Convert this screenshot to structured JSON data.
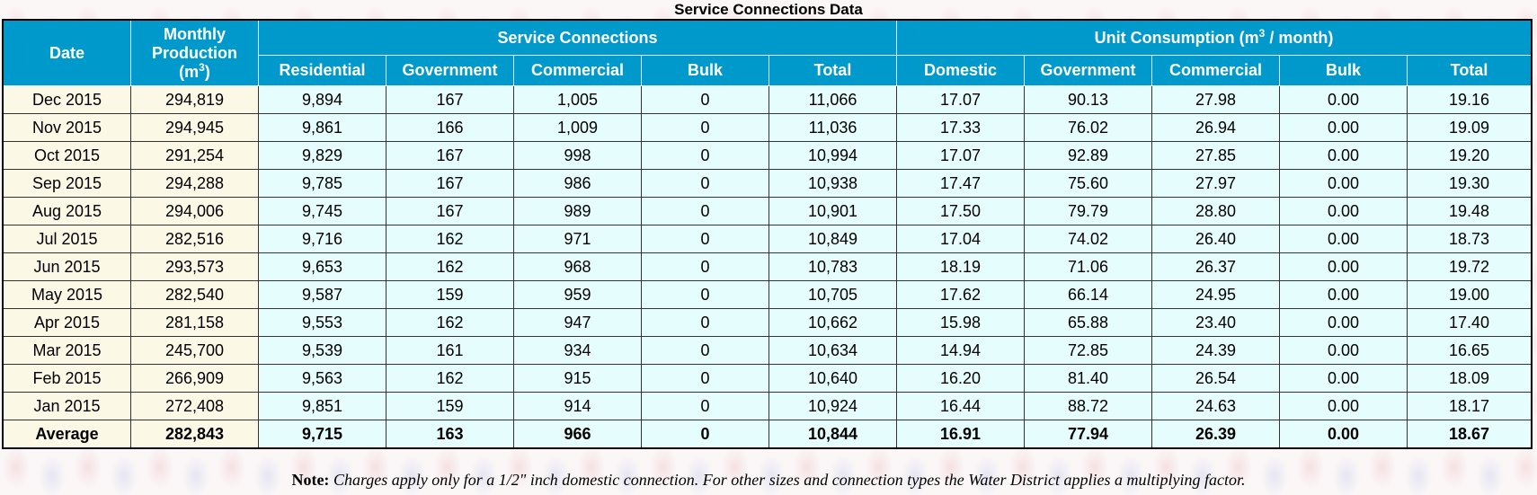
{
  "caption": "Service Connections Data",
  "headers": {
    "date": "Date",
    "production_line1": "Monthly",
    "production_line2": "Production",
    "production_unit": "(m",
    "production_sup": "3",
    "production_unit_close": ")",
    "service_group": "Service Connections",
    "consumption_group": "Unit Consumption (m",
    "consumption_sup": "3",
    "consumption_group_close": " / month)",
    "service_cols": [
      "Residential",
      "Government",
      "Commercial",
      "Bulk",
      "Total"
    ],
    "consumption_cols": [
      "Domestic",
      "Government",
      "Commercial",
      "Bulk",
      "Total"
    ]
  },
  "rows": [
    {
      "date": "Dec 2015",
      "production": "294,819",
      "residential": "9,894",
      "government": "167",
      "commercial": "1,005",
      "bulk": "0",
      "total": "11,066",
      "u_domestic": "17.07",
      "u_government": "90.13",
      "u_commercial": "27.98",
      "u_bulk": "0.00",
      "u_total": "19.16"
    },
    {
      "date": "Nov 2015",
      "production": "294,945",
      "residential": "9,861",
      "government": "166",
      "commercial": "1,009",
      "bulk": "0",
      "total": "11,036",
      "u_domestic": "17.33",
      "u_government": "76.02",
      "u_commercial": "26.94",
      "u_bulk": "0.00",
      "u_total": "19.09"
    },
    {
      "date": "Oct 2015",
      "production": "291,254",
      "residential": "9,829",
      "government": "167",
      "commercial": "998",
      "bulk": "0",
      "total": "10,994",
      "u_domestic": "17.07",
      "u_government": "92.89",
      "u_commercial": "27.85",
      "u_bulk": "0.00",
      "u_total": "19.20"
    },
    {
      "date": "Sep 2015",
      "production": "294,288",
      "residential": "9,785",
      "government": "167",
      "commercial": "986",
      "bulk": "0",
      "total": "10,938",
      "u_domestic": "17.47",
      "u_government": "75.60",
      "u_commercial": "27.97",
      "u_bulk": "0.00",
      "u_total": "19.30"
    },
    {
      "date": "Aug 2015",
      "production": "294,006",
      "residential": "9,745",
      "government": "167",
      "commercial": "989",
      "bulk": "0",
      "total": "10,901",
      "u_domestic": "17.50",
      "u_government": "79.79",
      "u_commercial": "28.80",
      "u_bulk": "0.00",
      "u_total": "19.48"
    },
    {
      "date": "Jul 2015",
      "production": "282,516",
      "residential": "9,716",
      "government": "162",
      "commercial": "971",
      "bulk": "0",
      "total": "10,849",
      "u_domestic": "17.04",
      "u_government": "74.02",
      "u_commercial": "26.40",
      "u_bulk": "0.00",
      "u_total": "18.73"
    },
    {
      "date": "Jun 2015",
      "production": "293,573",
      "residential": "9,653",
      "government": "162",
      "commercial": "968",
      "bulk": "0",
      "total": "10,783",
      "u_domestic": "18.19",
      "u_government": "71.06",
      "u_commercial": "26.37",
      "u_bulk": "0.00",
      "u_total": "19.72"
    },
    {
      "date": "May 2015",
      "production": "282,540",
      "residential": "9,587",
      "government": "159",
      "commercial": "959",
      "bulk": "0",
      "total": "10,705",
      "u_domestic": "17.62",
      "u_government": "66.14",
      "u_commercial": "24.95",
      "u_bulk": "0.00",
      "u_total": "19.00"
    },
    {
      "date": "Apr 2015",
      "production": "281,158",
      "residential": "9,553",
      "government": "162",
      "commercial": "947",
      "bulk": "0",
      "total": "10,662",
      "u_domestic": "15.98",
      "u_government": "65.88",
      "u_commercial": "23.40",
      "u_bulk": "0.00",
      "u_total": "17.40"
    },
    {
      "date": "Mar 2015",
      "production": "245,700",
      "residential": "9,539",
      "government": "161",
      "commercial": "934",
      "bulk": "0",
      "total": "10,634",
      "u_domestic": "14.94",
      "u_government": "72.85",
      "u_commercial": "24.39",
      "u_bulk": "0.00",
      "u_total": "16.65"
    },
    {
      "date": "Feb 2015",
      "production": "266,909",
      "residential": "9,563",
      "government": "162",
      "commercial": "915",
      "bulk": "0",
      "total": "10,640",
      "u_domestic": "16.20",
      "u_government": "81.40",
      "u_commercial": "26.54",
      "u_bulk": "0.00",
      "u_total": "18.09"
    },
    {
      "date": "Jan 2015",
      "production": "272,408",
      "residential": "9,851",
      "government": "159",
      "commercial": "914",
      "bulk": "0",
      "total": "10,924",
      "u_domestic": "16.44",
      "u_government": "88.72",
      "u_commercial": "24.63",
      "u_bulk": "0.00",
      "u_total": "18.17"
    },
    {
      "date": "Average",
      "production": "282,843",
      "residential": "9,715",
      "government": "163",
      "commercial": "966",
      "bulk": "0",
      "total": "10,844",
      "u_domestic": "16.91",
      "u_government": "77.94",
      "u_commercial": "26.39",
      "u_bulk": "0.00",
      "u_total": "18.67"
    }
  ],
  "note": {
    "label": "Note:",
    "text": "Charges apply only for a 1/2\" inch domestic connection. For other sizes and connection types the Water District applies a multiplying factor."
  }
}
